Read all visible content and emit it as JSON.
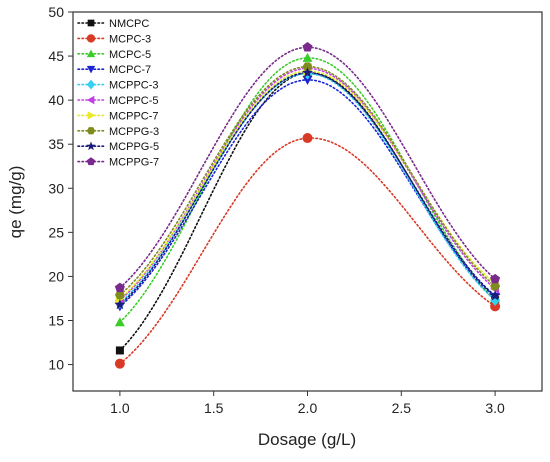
{
  "chart_data": {
    "type": "scatter",
    "xlabel": "Dosage (g/L)",
    "ylabel": "qe (mg/g)",
    "xlim": [
      0.75,
      3.25
    ],
    "ylim": [
      7,
      50
    ],
    "x_ticks": [
      "1.0",
      "1.5",
      "2.0",
      "2.5",
      "3.0"
    ],
    "x_tick_values": [
      1.0,
      1.5,
      2.0,
      2.5,
      3.0
    ],
    "y_ticks": [
      "10",
      "15",
      "20",
      "25",
      "30",
      "35",
      "40",
      "45",
      "50"
    ],
    "y_tick_values": [
      10,
      15,
      20,
      25,
      30,
      35,
      40,
      45,
      50
    ],
    "legend_position": "top-left",
    "fit_lines": "dotted smooth curves",
    "x": [
      1.0,
      2.0,
      3.0
    ],
    "series": [
      {
        "name": "NMCPC",
        "color": "#111111",
        "marker": "square",
        "values": [
          11.6,
          43.1,
          17.3
        ]
      },
      {
        "name": "MCPC-3",
        "color": "#d93a26",
        "marker": "circle",
        "values": [
          10.1,
          35.7,
          16.6
        ]
      },
      {
        "name": "MCPC-5",
        "color": "#3bcc2a",
        "marker": "triangle-up",
        "values": [
          14.8,
          44.8,
          17.5
        ]
      },
      {
        "name": "MCPC-7",
        "color": "#1a24d6",
        "marker": "triangle-down",
        "values": [
          16.6,
          42.3,
          17.7
        ]
      },
      {
        "name": "MCPPC-3",
        "color": "#33d0f0",
        "marker": "diamond",
        "values": [
          17.0,
          43.0,
          17.3
        ]
      },
      {
        "name": "MCPPC-5",
        "color": "#c040e0",
        "marker": "triangle-left",
        "values": [
          17.3,
          43.6,
          18.6
        ]
      },
      {
        "name": "MCPPC-7",
        "color": "#e8e82c",
        "marker": "triangle-right",
        "values": [
          17.5,
          43.3,
          19.2
        ]
      },
      {
        "name": "MCPPG-3",
        "color": "#7f8b1e",
        "marker": "hexagon",
        "values": [
          17.9,
          43.8,
          18.9
        ]
      },
      {
        "name": "MCPPG-5",
        "color": "#1c1c7a",
        "marker": "star",
        "values": [
          16.8,
          43.1,
          17.8
        ]
      },
      {
        "name": "MCPPG-7",
        "color": "#7a2a8c",
        "marker": "pentagon",
        "values": [
          18.7,
          46.0,
          19.7
        ]
      }
    ]
  }
}
